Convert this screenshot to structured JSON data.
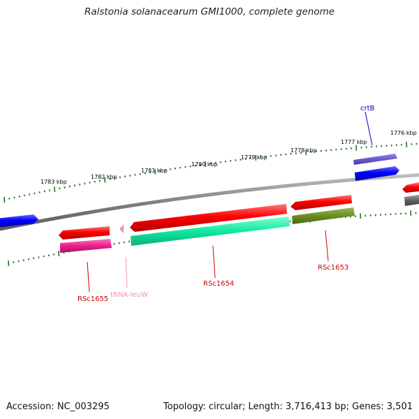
{
  "title": "Ralstonia solanacearum GMI1000, complete genome",
  "footer": {
    "accession": "Accession: NC_003295",
    "summary": "Topology: circular; Length: 3,716,413 bp; Genes: 3,501"
  },
  "ruler_top": {
    "labels": [
      "1783 kbp",
      "1782 kbp",
      "1781 kbp",
      "1780 kbp",
      "1779 kbp",
      "1778 kbp",
      "1777 kbp",
      "1776 kbp"
    ]
  },
  "gene_labels": {
    "crtB": "crtB",
    "RSc1655": "RSc1655",
    "tRNA_leuW": "tRNA-leuW",
    "RSc1654": "RSc1654",
    "RSc1653": "RSc1653"
  },
  "colors": {
    "backbone": "#808080",
    "ruler": "#1f7a1f",
    "gene_red": "#ee0000",
    "cds_blue": "#0000ee",
    "cog_purple": "#6a5acd",
    "cog_magenta": "#e0208a",
    "cog_cyan": "#10e8a0",
    "cog_olive": "#6b8e23",
    "cog_gray": "#606060",
    "trna_pink": "#f090c0",
    "label_red": "#cc0000",
    "label_blue": "#0000cc",
    "label_pink": "#f090c0"
  }
}
